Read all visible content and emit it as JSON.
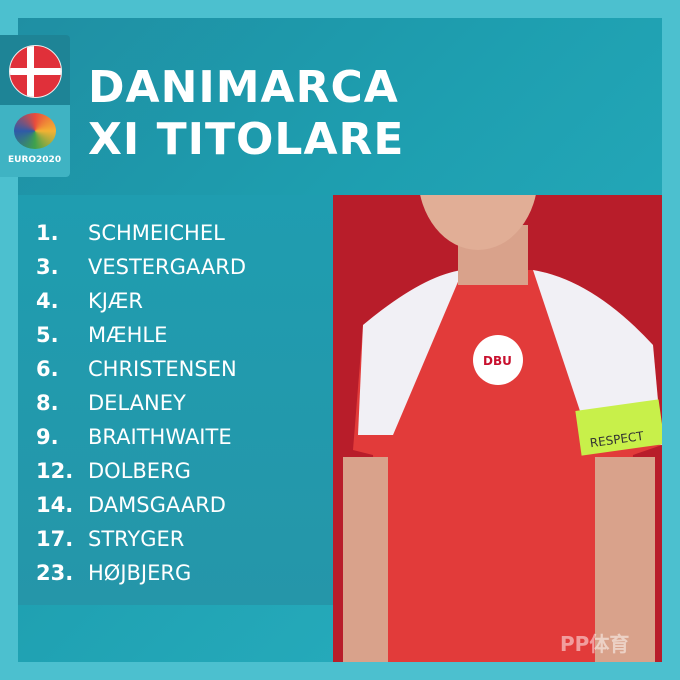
{
  "header": {
    "line1": "DANIMARCA",
    "line2": "XI TITOLARE"
  },
  "badges": {
    "flag": "denmark-flag",
    "logo_text": "EURO2020"
  },
  "players": [
    {
      "number": "1.",
      "name": "SCHMEICHEL"
    },
    {
      "number": "3.",
      "name": "VESTERGAARD"
    },
    {
      "number": "4.",
      "name": "KJÆR"
    },
    {
      "number": "5.",
      "name": "MÆHLE"
    },
    {
      "number": "6.",
      "name": "CHRISTENSEN"
    },
    {
      "number": "8.",
      "name": "DELANEY"
    },
    {
      "number": "9.",
      "name": "BRAITHWAITE"
    },
    {
      "number": "12.",
      "name": "DOLBERG"
    },
    {
      "number": "14.",
      "name": "DAMSGAARD"
    },
    {
      "number": "17.",
      "name": "STRYGER"
    },
    {
      "number": "23.",
      "name": "HØJBJERG"
    }
  ],
  "photo": {
    "armband_text": "RESPECT",
    "crest_text": "DBU"
  },
  "watermark": "PP体育",
  "colors": {
    "teal": "#1e9fb0",
    "frame": "#4cc0cf",
    "red": "#b81d2a",
    "armband": "#c8f04a"
  }
}
